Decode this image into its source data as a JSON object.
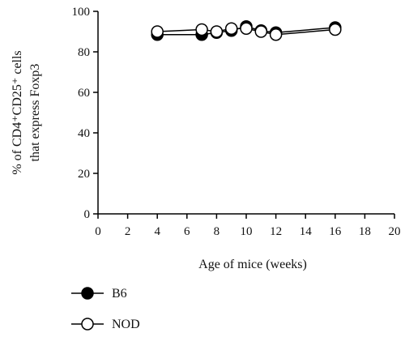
{
  "chart_data": {
    "type": "line",
    "title": "",
    "xlabel": "Age of mice (weeks)",
    "ylabel_lines": [
      "% of CD4⁺CD25⁺ cells",
      "that express Foxp3"
    ],
    "xlim": [
      0,
      20
    ],
    "ylim": [
      0,
      100
    ],
    "xticks": [
      0,
      2,
      4,
      6,
      8,
      10,
      12,
      14,
      16,
      18,
      20
    ],
    "yticks": [
      0,
      20,
      40,
      60,
      80,
      100
    ],
    "grid": false,
    "legend_position": "bottom-left",
    "series": [
      {
        "name": "B6",
        "marker": "filled-circle",
        "color": "#000000",
        "x": [
          4,
          7,
          8,
          9,
          10,
          11,
          12,
          16
        ],
        "y": [
          88.5,
          88.5,
          89.5,
          90.5,
          92.5,
          90.5,
          89.5,
          92
        ]
      },
      {
        "name": "NOD",
        "marker": "open-circle",
        "color": "#000000",
        "x": [
          4,
          7,
          8,
          9,
          10,
          11,
          12,
          16
        ],
        "y": [
          90,
          91,
          90,
          91.5,
          91.5,
          90,
          88.5,
          91
        ]
      }
    ]
  }
}
